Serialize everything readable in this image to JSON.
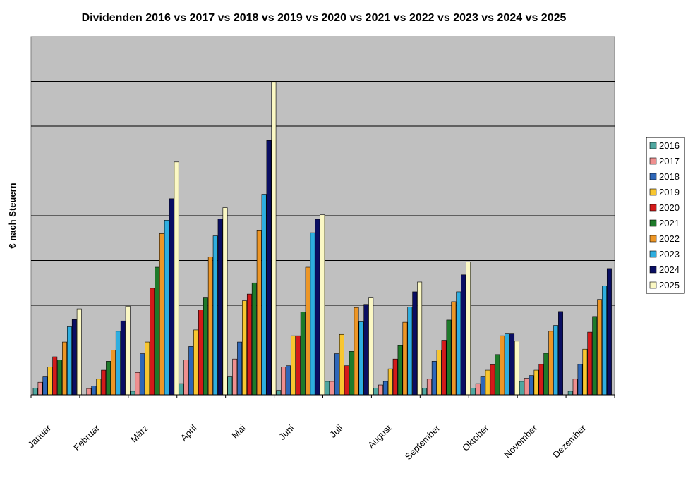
{
  "chart_data": {
    "type": "bar",
    "title": "Dividenden 2016 vs 2017 vs 2018 vs 2019 vs 2020 vs 2021 vs 2022 vs 2023 vs 2024 vs 2025",
    "xlabel": "",
    "ylabel": "€ nach Steuern",
    "categories": [
      "Januar",
      "Februar",
      "März",
      "April",
      "Mai",
      "Juni",
      "Juli",
      "August",
      "September",
      "Oktober",
      "November",
      "Dezember"
    ],
    "ylim": [
      0,
      800
    ],
    "grid": true,
    "legend_position": "right",
    "series": [
      {
        "name": "2016",
        "color": "#4fa7a0",
        "values": [
          15,
          0,
          8,
          25,
          40,
          10,
          30,
          15,
          15,
          15,
          30,
          8
        ]
      },
      {
        "name": "2017",
        "color": "#ef8f8f",
        "values": [
          28,
          14,
          50,
          78,
          80,
          62,
          30,
          22,
          35,
          25,
          37,
          35
        ]
      },
      {
        "name": "2018",
        "color": "#2e67b8",
        "values": [
          40,
          20,
          92,
          108,
          118,
          65,
          92,
          30,
          75,
          40,
          43,
          68
        ]
      },
      {
        "name": "2019",
        "color": "#f8c630",
        "values": [
          62,
          35,
          118,
          145,
          210,
          132,
          135,
          58,
          100,
          55,
          55,
          102
        ]
      },
      {
        "name": "2020",
        "color": "#d41a1a",
        "values": [
          85,
          55,
          238,
          190,
          225,
          132,
          65,
          80,
          122,
          67,
          68,
          140
        ]
      },
      {
        "name": "2021",
        "color": "#1e7a2a",
        "values": [
          78,
          75,
          285,
          218,
          250,
          185,
          97,
          110,
          167,
          90,
          93,
          175
        ]
      },
      {
        "name": "2022",
        "color": "#ed9626",
        "values": [
          118,
          100,
          360,
          308,
          368,
          285,
          195,
          162,
          208,
          132,
          142,
          213
        ]
      },
      {
        "name": "2023",
        "color": "#2eaee0",
        "values": [
          152,
          142,
          390,
          355,
          448,
          362,
          163,
          196,
          230,
          136,
          155,
          243
        ]
      },
      {
        "name": "2024",
        "color": "#0a0e63",
        "values": [
          168,
          165,
          438,
          393,
          568,
          392,
          202,
          230,
          268,
          136,
          186,
          282
        ]
      },
      {
        "name": "2025",
        "color": "#fbf8c4",
        "values": [
          192,
          198,
          520,
          418,
          698,
          402,
          218,
          252,
          297,
          120,
          0,
          0
        ]
      }
    ]
  }
}
